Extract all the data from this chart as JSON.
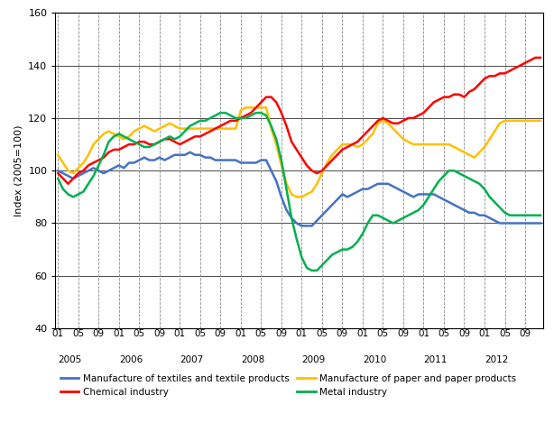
{
  "ylabel": "Index (2005=100)",
  "ylim": [
    40,
    160
  ],
  "yticks": [
    40,
    60,
    80,
    100,
    120,
    140,
    160
  ],
  "background_color": "#ffffff",
  "line_colors": {
    "textiles": "#4472c4",
    "paper": "#ffc000",
    "chemical": "#ff0000",
    "metal": "#00b050"
  },
  "legend_labels": {
    "textiles": "Manufacture of textiles and textile products",
    "paper": "Manufacture of paper and paper products",
    "chemical": "Chemical industry",
    "metal": "Metal industry"
  },
  "years": [
    "2005",
    "2006",
    "2007",
    "2008",
    "2009",
    "2010",
    "2011",
    "2012"
  ],
  "textiles": [
    100,
    99,
    98,
    97,
    98,
    99,
    100,
    101,
    100,
    99,
    100,
    101,
    102,
    101,
    103,
    103,
    104,
    105,
    104,
    104,
    105,
    104,
    105,
    106,
    106,
    106,
    107,
    106,
    106,
    105,
    105,
    104,
    104,
    104,
    104,
    104,
    103,
    103,
    103,
    103,
    104,
    104,
    100,
    96,
    90,
    85,
    82,
    80,
    79,
    79,
    79,
    81,
    83,
    85,
    87,
    89,
    91,
    90,
    91,
    92,
    93,
    93,
    94,
    95,
    95,
    95,
    94,
    93,
    92,
    91,
    90,
    91,
    91,
    91,
    91,
    90,
    89,
    88,
    87,
    86,
    85,
    84,
    84,
    83,
    83,
    82,
    81,
    80,
    80,
    80,
    80,
    80,
    80,
    80,
    80,
    80
  ],
  "paper": [
    106,
    103,
    100,
    99,
    101,
    103,
    106,
    110,
    112,
    114,
    115,
    114,
    113,
    112,
    113,
    115,
    116,
    117,
    116,
    115,
    116,
    117,
    118,
    117,
    116,
    116,
    116,
    116,
    116,
    116,
    116,
    116,
    116,
    116,
    116,
    116,
    123,
    124,
    124,
    124,
    124,
    124,
    116,
    110,
    102,
    95,
    91,
    90,
    90,
    91,
    92,
    95,
    99,
    103,
    106,
    108,
    110,
    110,
    110,
    109,
    110,
    112,
    114,
    118,
    119,
    118,
    116,
    114,
    112,
    111,
    110,
    110,
    110,
    110,
    110,
    110,
    110,
    110,
    109,
    108,
    107,
    106,
    105,
    107,
    109,
    112,
    115,
    118,
    119,
    119,
    119,
    119,
    119,
    119,
    119,
    119
  ],
  "chemical": [
    99,
    97,
    95,
    97,
    99,
    100,
    102,
    103,
    104,
    105,
    107,
    108,
    108,
    109,
    110,
    110,
    111,
    111,
    110,
    110,
    111,
    112,
    112,
    111,
    110,
    111,
    112,
    113,
    113,
    114,
    115,
    116,
    117,
    118,
    119,
    119,
    120,
    121,
    122,
    124,
    126,
    128,
    128,
    126,
    122,
    117,
    111,
    108,
    105,
    102,
    100,
    99,
    100,
    102,
    104,
    106,
    108,
    109,
    110,
    111,
    113,
    115,
    117,
    119,
    120,
    119,
    118,
    118,
    119,
    120,
    120,
    121,
    122,
    124,
    126,
    127,
    128,
    128,
    129,
    129,
    128,
    130,
    131,
    133,
    135,
    136,
    136,
    137,
    137,
    138,
    139,
    140,
    141,
    142,
    143,
    143
  ],
  "metal": [
    97,
    93,
    91,
    90,
    91,
    92,
    95,
    98,
    102,
    106,
    111,
    113,
    114,
    113,
    112,
    111,
    110,
    109,
    109,
    110,
    111,
    112,
    113,
    112,
    113,
    115,
    117,
    118,
    119,
    119,
    120,
    121,
    122,
    122,
    121,
    120,
    120,
    120,
    121,
    122,
    122,
    121,
    117,
    112,
    104,
    93,
    82,
    74,
    67,
    63,
    62,
    62,
    64,
    66,
    68,
    69,
    70,
    70,
    71,
    73,
    76,
    80,
    83,
    83,
    82,
    81,
    80,
    81,
    82,
    83,
    84,
    85,
    87,
    90,
    93,
    96,
    98,
    100,
    100,
    99,
    98,
    97,
    96,
    95,
    93,
    90,
    88,
    86,
    84,
    83,
    83,
    83,
    83,
    83,
    83,
    83
  ]
}
